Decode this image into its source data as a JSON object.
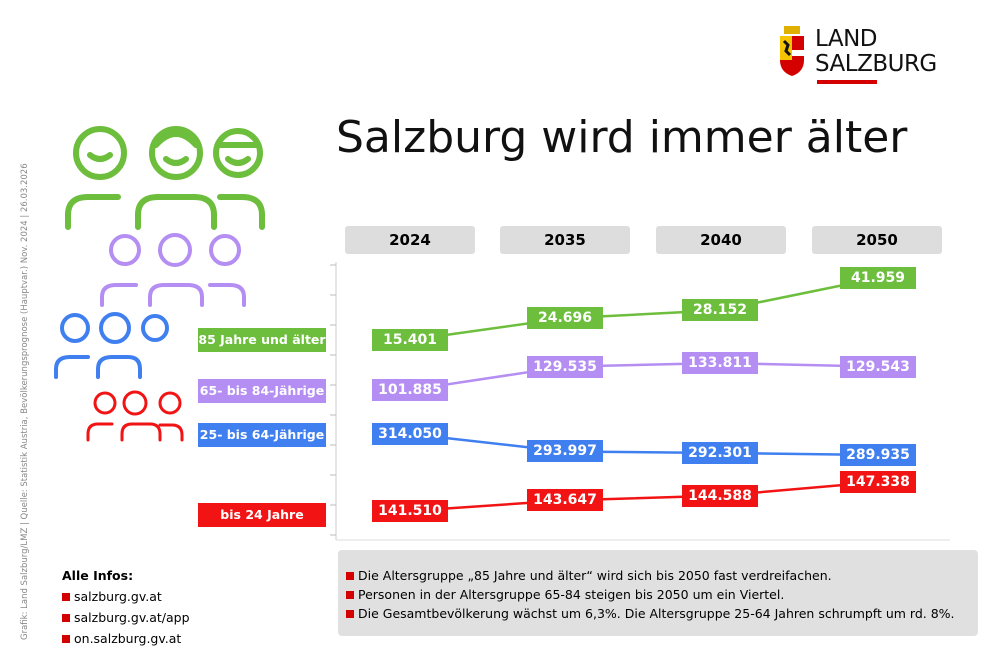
{
  "credit": "Grafik: Land Salzburg/LMZ | Quelle: Statistik Austria, Bevölkerungsprognose (Hauptvar.) Nov. 2024 | 26.03.2026",
  "logo": {
    "line1": "LAND",
    "line2": "SALZBURG",
    "accent": "#d40000"
  },
  "title": "Salzburg wird immer älter",
  "chart_data": {
    "type": "line",
    "categories": [
      "2024",
      "2035",
      "2040",
      "2050"
    ],
    "series": [
      {
        "name": "85 Jahre und älter",
        "color": "#6cbe3c",
        "values": [
          15401,
          24696,
          28152,
          41959
        ],
        "labels": [
          "15.401",
          "24.696",
          "28.152",
          "41.959"
        ]
      },
      {
        "name": "65- bis 84-Jährige",
        "color": "#b48ef2",
        "values": [
          101885,
          129535,
          133811,
          129543
        ],
        "labels": [
          "101.885",
          "129.535",
          "133.811",
          "129.543"
        ]
      },
      {
        "name": "25- bis 64-Jährige",
        "color": "#3f7fef",
        "values": [
          314050,
          293997,
          292301,
          289935
        ],
        "labels": [
          "314.050",
          "293.997",
          "292.301",
          "289.935"
        ]
      },
      {
        "name": "bis 24 Jahre",
        "color": "#f21414",
        "values": [
          141510,
          143647,
          144588,
          147338
        ],
        "labels": [
          "141.510",
          "143.647",
          "144.588",
          "147.338"
        ]
      }
    ]
  },
  "notes": [
    "Die Altersgruppe „85 Jahre und älter“ wird sich bis 2050 fast verdreifachen.",
    "Personen in der Altersgruppe 65-84 steigen bis 2050 um ein Viertel.",
    "Die Gesamtbevölkerung wächst um 6,3%. Die Altersgruppe 25-64 Jahren schrumpft um rd. 8%."
  ],
  "infos": {
    "title": "Alle Infos:",
    "links": [
      "salzburg.gv.at",
      "salzburg.gv.at/app",
      "on.salzburg.gv.at"
    ]
  }
}
